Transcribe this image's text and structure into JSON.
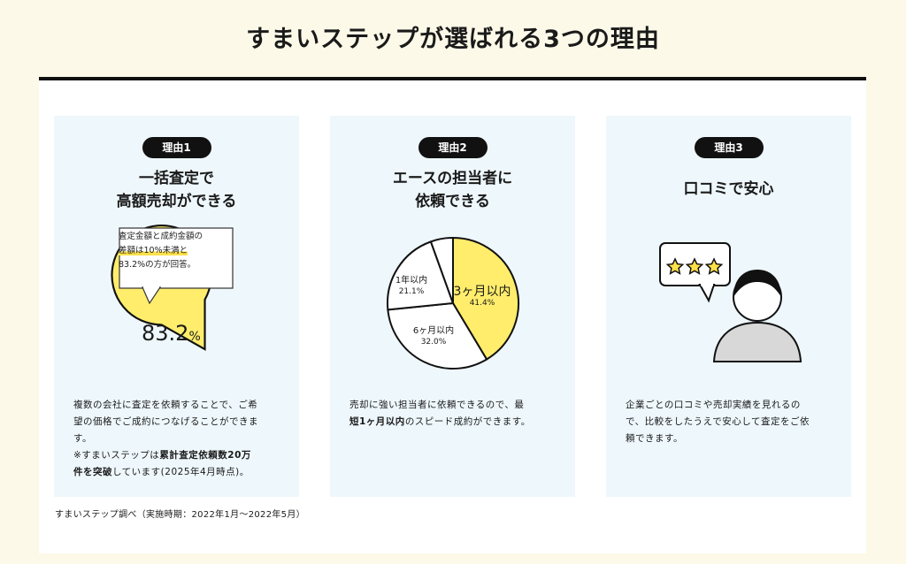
{
  "title": "すまいステップが選ばれる3つの理由",
  "footnote": "すまいステップ調べ（実施時期：2022年1月〜2022年5月）",
  "colors": {
    "accent_yellow": "#ffed6b",
    "card_bg": "#eef7fb",
    "badge": "#111111"
  },
  "reasons": [
    {
      "badge": "理由1",
      "heading_line1": "一括査定で",
      "heading_line2": "高額売却ができる",
      "callout_line1": "査定金額と成約金額の",
      "callout_line2": "差額は10%未満と",
      "callout_line3": "83.2%の方が回答。",
      "percent_value": "83.2",
      "percent_unit": "%",
      "desc_line1": "複数の会社に査定を依頼することで、ご希",
      "desc_line2": "望の価格でご成約につなげることができま",
      "desc_line3": "す。",
      "desc_line4_pre": "※すまいステップは",
      "desc_line4_bold": "累計査定依頼数20万",
      "desc_line5_bold": "件を突破",
      "desc_line5_post": "しています(2025年4月時点)。"
    },
    {
      "badge": "理由2",
      "heading_line1": "エースの担当者に",
      "heading_line2": "依頼できる",
      "desc_line1": "売却に強い担当者に依頼できるので、最",
      "desc_line2_bold": "短1ヶ月以内",
      "desc_line2_post": "のスピード成約ができます。"
    },
    {
      "badge": "理由3",
      "heading_line1": "口コミで安心",
      "desc_line1": "企業ごとの口コミや売却実績を見れるの",
      "desc_line2": "で、比較をしたうえで安心して査定をご依",
      "desc_line3": "頼できます。"
    }
  ],
  "pie1": {
    "value": 83.2
  },
  "chart_data": {
    "type": "pie",
    "slices": [
      {
        "label": "3ヶ月以内",
        "value": 41.4,
        "display": "41.4%",
        "color": "#ffed6b"
      },
      {
        "label": "6ヶ月以内",
        "value": 32.0,
        "display": "32.0%",
        "color": "#ffffff"
      },
      {
        "label": "1年以内",
        "value": 21.1,
        "display": "21.1%",
        "color": "#ffffff"
      },
      {
        "label": "",
        "value": 5.5,
        "display": "",
        "color": "#ffffff"
      }
    ]
  },
  "icons": {
    "stars": "star-icon",
    "person": "person-icon",
    "speech_bubble": "speech-bubble-icon"
  }
}
